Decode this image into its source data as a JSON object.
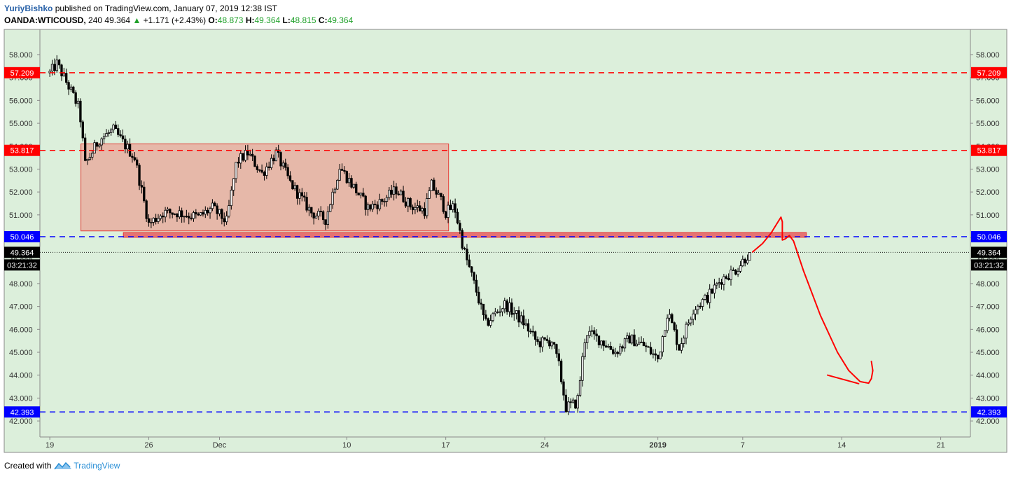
{
  "header": {
    "author": "YuriyBishko",
    "published_text": "published on TradingView.com, January 07, 2019 12:38 IST",
    "symbol": "OANDA:WTICOUSD",
    "interval": "240",
    "last": "49.364",
    "change": "+1.171 (+2.43%)",
    "o_label": "O:",
    "o": "48.873",
    "h_label": "H:",
    "h": "49.364",
    "l_label": "L:",
    "l": "48.815",
    "c_label": "C:",
    "c": "49.364"
  },
  "footer": {
    "created_with": "Created with",
    "brand": "TradingView"
  },
  "colors": {
    "background": "#dcefdb",
    "candle": "#000000",
    "resistance": "#ff0000",
    "support": "#0000ff",
    "zone_fill": "#e8aea0",
    "zone_border": "#e53935",
    "up_arrow": "#21a12b"
  },
  "chart_data": {
    "type": "candlestick",
    "y_ticks": [
      "58.000",
      "57.000",
      "56.000",
      "55.000",
      "54.000",
      "53.000",
      "52.000",
      "51.000",
      "50.000",
      "49.000",
      "48.000",
      "47.000",
      "46.000",
      "45.000",
      "44.000",
      "43.000",
      "42.000"
    ],
    "ylim": [
      41.3,
      59.1
    ],
    "x_ticks": [
      {
        "label": "19",
        "day": 0
      },
      {
        "label": "26",
        "day": 7
      },
      {
        "label": "Dec",
        "day": 12
      },
      {
        "label": "10",
        "day": 21
      },
      {
        "label": "17",
        "day": 28
      },
      {
        "label": "24",
        "day": 35
      },
      {
        "label": "2019",
        "day": 43,
        "bold": true
      },
      {
        "label": "7",
        "day": 49
      },
      {
        "label": "14",
        "day": 56
      },
      {
        "label": "21",
        "day": 63
      }
    ],
    "xlim": [
      -0.7,
      65.1
    ],
    "horizontal_levels": [
      {
        "label": "57.209",
        "value": 57.209,
        "color": "#ff0000"
      },
      {
        "label": "53.817",
        "value": 53.817,
        "color": "#ff0000"
      },
      {
        "label": "50.046",
        "value": 50.046,
        "color": "#0000ff"
      },
      {
        "label": "42.393",
        "value": 42.393,
        "color": "#0000ff"
      }
    ],
    "current_price": {
      "label": "49.364",
      "value": 49.364
    },
    "countdown": "03:21:32",
    "range_zone": {
      "start_day": 2.2,
      "end_day": 28.2,
      "top": 54.1,
      "bottom": 50.3
    },
    "support_zone": {
      "start_day": 5.2,
      "end_day": 53.5,
      "top": 50.2,
      "bottom": 50.05
    },
    "anchors": [
      {
        "day": 0.0,
        "price": 57.2
      },
      {
        "day": 0.5,
        "price": 57.6
      },
      {
        "day": 1.5,
        "price": 56.4
      },
      {
        "day": 2.1,
        "price": 55.6
      },
      {
        "day": 2.5,
        "price": 53.2
      },
      {
        "day": 3.5,
        "price": 54.3
      },
      {
        "day": 4.5,
        "price": 54.7
      },
      {
        "day": 6.0,
        "price": 53.5
      },
      {
        "day": 7.0,
        "price": 50.6
      },
      {
        "day": 8.0,
        "price": 51.1
      },
      {
        "day": 9.0,
        "price": 51.1
      },
      {
        "day": 10.5,
        "price": 50.9
      },
      {
        "day": 11.5,
        "price": 51.3
      },
      {
        "day": 12.5,
        "price": 50.7
      },
      {
        "day": 13.2,
        "price": 53.3
      },
      {
        "day": 14.0,
        "price": 53.7
      },
      {
        "day": 15.0,
        "price": 52.8
      },
      {
        "day": 16.0,
        "price": 53.7
      },
      {
        "day": 17.0,
        "price": 52.4
      },
      {
        "day": 18.5,
        "price": 51.1
      },
      {
        "day": 19.5,
        "price": 50.8
      },
      {
        "day": 20.5,
        "price": 53.1
      },
      {
        "day": 21.5,
        "price": 52.2
      },
      {
        "day": 22.5,
        "price": 51.3
      },
      {
        "day": 23.5,
        "price": 51.6
      },
      {
        "day": 24.5,
        "price": 52.1
      },
      {
        "day": 25.5,
        "price": 51.4
      },
      {
        "day": 26.5,
        "price": 51.2
      },
      {
        "day": 27.0,
        "price": 52.3
      },
      {
        "day": 27.7,
        "price": 51.6
      },
      {
        "day": 28.0,
        "price": 51.1
      },
      {
        "day": 28.6,
        "price": 51.4
      },
      {
        "day": 29.3,
        "price": 49.4
      },
      {
        "day": 30.2,
        "price": 47.6
      },
      {
        "day": 30.8,
        "price": 46.2
      },
      {
        "day": 31.5,
        "price": 46.7
      },
      {
        "day": 32.2,
        "price": 47.1
      },
      {
        "day": 33.5,
        "price": 46.3
      },
      {
        "day": 34.5,
        "price": 45.4
      },
      {
        "day": 35.5,
        "price": 45.5
      },
      {
        "day": 36.0,
        "price": 44.4
      },
      {
        "day": 36.5,
        "price": 42.6
      },
      {
        "day": 37.3,
        "price": 42.8
      },
      {
        "day": 37.9,
        "price": 45.9
      },
      {
        "day": 39.0,
        "price": 45.5
      },
      {
        "day": 40.0,
        "price": 45.0
      },
      {
        "day": 41.0,
        "price": 45.6
      },
      {
        "day": 42.0,
        "price": 45.3
      },
      {
        "day": 43.0,
        "price": 44.7
      },
      {
        "day": 43.7,
        "price": 46.8
      },
      {
        "day": 44.5,
        "price": 45.2
      },
      {
        "day": 45.5,
        "price": 46.9
      },
      {
        "day": 46.5,
        "price": 47.4
      },
      {
        "day": 47.5,
        "price": 48.2
      },
      {
        "day": 48.5,
        "price": 48.6
      },
      {
        "day": 49.5,
        "price": 49.36
      }
    ],
    "projection_annotation": [
      {
        "day": 49.7,
        "price": 49.38
      },
      {
        "day": 50.4,
        "price": 49.75
      },
      {
        "day": 51.0,
        "price": 50.2
      },
      {
        "day": 51.4,
        "price": 50.6
      },
      {
        "day": 51.7,
        "price": 50.9
      },
      {
        "day": 51.8,
        "price": 50.7
      },
      {
        "day": 51.8,
        "price": 50.2
      },
      {
        "day": 51.8,
        "price": 49.9
      },
      {
        "day": 52.0,
        "price": 49.95
      },
      {
        "day": 52.3,
        "price": 50.1
      },
      {
        "day": 52.6,
        "price": 49.85
      },
      {
        "day": 53.3,
        "price": 48.55
      },
      {
        "day": 54.5,
        "price": 46.6
      },
      {
        "day": 55.7,
        "price": 45.0
      },
      {
        "day": 56.5,
        "price": 44.2
      },
      {
        "day": 57.3,
        "price": 43.72
      },
      {
        "day": 57.9,
        "price": 43.65
      },
      {
        "day": 58.1,
        "price": 43.85
      },
      {
        "day": 58.2,
        "price": 44.2
      },
      {
        "day": 58.1,
        "price": 44.6
      }
    ],
    "projection_tick": [
      {
        "day": 55.0,
        "price": 44.0
      },
      {
        "day": 56.2,
        "price": 43.8
      },
      {
        "day": 57.2,
        "price": 43.63
      }
    ]
  }
}
